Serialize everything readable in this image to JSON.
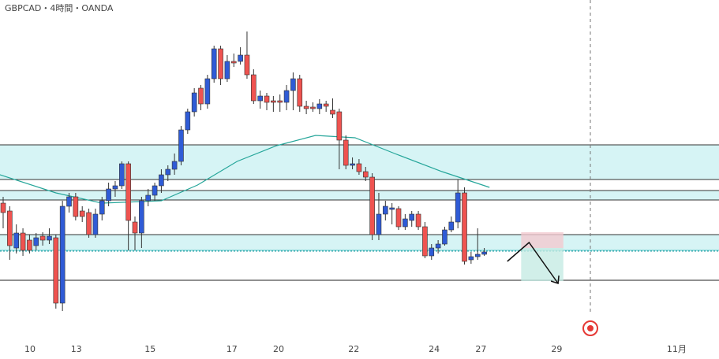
{
  "chart_data": {
    "type": "candlestick",
    "title": "GBPCAD・4時間・OANDA",
    "up_color": "#2f5bd6",
    "down_color": "#ef5350",
    "xlim": [
      -0.48,
      108.62
    ],
    "ylim": [
      1.7844,
      1.83
    ],
    "xticks": [
      {
        "value": 4.07,
        "label": "10"
      },
      {
        "value": 11.1,
        "label": "13"
      },
      {
        "value": 22.3,
        "label": "15"
      },
      {
        "value": 34.7,
        "label": "17"
      },
      {
        "value": 41.8,
        "label": "20"
      },
      {
        "value": 53.2,
        "label": "22"
      },
      {
        "value": 65.4,
        "label": "24"
      },
      {
        "value": 72.5,
        "label": "27"
      },
      {
        "value": 84.0,
        "label": "29"
      },
      {
        "value": 102.2,
        "label": "11月"
      }
    ],
    "open": [
      1.8042,
      1.8032,
      1.7985,
      1.8004,
      1.7995,
      1.7988,
      1.8,
      1.7995,
      1.7998,
      1.7915,
      1.8038,
      1.805,
      1.8032,
      1.803,
      1.8002,
      1.8028,
      1.8045,
      1.806,
      1.8064,
      1.8092,
      1.8018,
      1.8004,
      1.8045,
      1.8052,
      1.8064,
      1.8078,
      1.8085,
      1.8095,
      1.8135,
      1.8158,
      1.8188,
      1.8168,
      1.82,
      1.8238,
      1.82,
      1.8222,
      1.8222,
      1.823,
      1.8205,
      1.8172,
      1.8178,
      1.8172,
      1.8172,
      1.817,
      1.8185,
      1.82,
      1.8165,
      1.8164,
      1.8162,
      1.8168,
      1.816,
      1.8158,
      1.8122,
      1.809,
      1.8092,
      1.8082,
      1.8075,
      1.8002,
      1.8028,
      1.8034,
      1.8035,
      1.8012,
      1.802,
      1.8028,
      1.8012,
      1.7975,
      1.7985,
      1.799,
      1.8008,
      1.8018,
      1.8055,
      1.797,
      1.7974,
      1.7977
    ],
    "high": [
      1.805,
      1.8038,
      1.8015,
      1.801,
      1.8002,
      1.8004,
      1.8005,
      1.801,
      1.8002,
      1.8045,
      1.8055,
      1.8055,
      1.8038,
      1.8035,
      1.8035,
      1.805,
      1.8068,
      1.807,
      1.8095,
      1.8095,
      1.8025,
      1.805,
      1.806,
      1.8068,
      1.8085,
      1.809,
      1.8105,
      1.814,
      1.8162,
      1.8188,
      1.8192,
      1.8205,
      1.8242,
      1.8242,
      1.823,
      1.8232,
      1.824,
      1.826,
      1.8212,
      1.8185,
      1.8182,
      1.8178,
      1.818,
      1.8192,
      1.8208,
      1.8205,
      1.8172,
      1.817,
      1.8174,
      1.8172,
      1.8175,
      1.8162,
      1.8128,
      1.81,
      1.8098,
      1.8088,
      1.808,
      1.8055,
      1.8045,
      1.8042,
      1.8038,
      1.8028,
      1.8032,
      1.8032,
      1.8018,
      1.799,
      1.7995,
      1.8012,
      1.8025,
      1.8072,
      1.8062,
      1.798,
      1.801,
      1.7985
    ],
    "low": [
      1.801,
      1.797,
      1.7978,
      1.7975,
      1.7978,
      1.7982,
      1.7988,
      1.799,
      1.7908,
      1.7905,
      1.803,
      1.802,
      1.8018,
      1.7998,
      1.7998,
      1.802,
      1.8038,
      1.805,
      1.806,
      1.7982,
      1.7982,
      1.7985,
      1.8038,
      1.8045,
      1.8055,
      1.807,
      1.8078,
      1.809,
      1.813,
      1.8152,
      1.816,
      1.8162,
      1.8195,
      1.8192,
      1.8196,
      1.8215,
      1.8218,
      1.82,
      1.8168,
      1.8162,
      1.816,
      1.8158,
      1.8158,
      1.816,
      1.816,
      1.8158,
      1.8155,
      1.8158,
      1.8155,
      1.8158,
      1.815,
      1.8085,
      1.8085,
      1.8085,
      1.8078,
      1.807,
      1.7995,
      1.7995,
      1.802,
      1.8015,
      1.8008,
      1.8008,
      1.8012,
      1.8008,
      1.7972,
      1.797,
      1.7978,
      1.7988,
      1.8005,
      1.801,
      1.7964,
      1.7965,
      1.797,
      1.7975
    ],
    "close": [
      1.803,
      1.7988,
      1.8004,
      1.7982,
      1.7982,
      1.7998,
      1.7995,
      1.8,
      1.7915,
      1.8038,
      1.805,
      1.8025,
      1.8025,
      1.8002,
      1.8028,
      1.8045,
      1.806,
      1.8064,
      1.8092,
      1.802,
      1.8004,
      1.8045,
      1.8052,
      1.8064,
      1.8078,
      1.8085,
      1.8095,
      1.8135,
      1.8158,
      1.8182,
      1.8168,
      1.82,
      1.8238,
      1.82,
      1.8222,
      1.822,
      1.823,
      1.8205,
      1.8172,
      1.8178,
      1.817,
      1.817,
      1.817,
      1.8185,
      1.82,
      1.8165,
      1.8162,
      1.8162,
      1.8168,
      1.8165,
      1.8155,
      1.8122,
      1.809,
      1.8092,
      1.8082,
      1.8075,
      1.8002,
      1.8028,
      1.8038,
      1.8036,
      1.8012,
      1.8022,
      1.8028,
      1.8012,
      1.7975,
      1.7985,
      1.799,
      1.8008,
      1.8018,
      1.8055,
      1.7968,
      1.7974,
      1.7977,
      1.798
    ],
    "moving_average": {
      "color": "#26a69a",
      "x": [
        -0.5,
        8,
        15,
        24,
        29.5,
        35.5,
        41.5,
        47.4,
        53.4,
        59.4,
        66.6,
        70.2,
        73.8
      ],
      "values": [
        1.8078,
        1.8055,
        1.8042,
        1.8045,
        1.8065,
        1.8095,
        1.8115,
        1.8128,
        1.8125,
        1.8105,
        1.8082,
        1.8072,
        1.8062
      ]
    },
    "zones": [
      [
        1.8116,
        1.8072
      ],
      [
        1.8058,
        1.8046
      ],
      [
        1.8002,
        1.7982
      ]
    ],
    "levels": [
      1.7944
    ],
    "dotted_level": 1.7981,
    "position": {
      "x": [
        78.6,
        85.0
      ],
      "stop": 1.8005,
      "entry": 1.7985,
      "target": 1.7943
    },
    "arrow": {
      "x": [
        76.5,
        79.8,
        84.2
      ],
      "values": [
        1.7968,
        1.7992,
        1.794
      ]
    },
    "event_line": 89.1
  }
}
